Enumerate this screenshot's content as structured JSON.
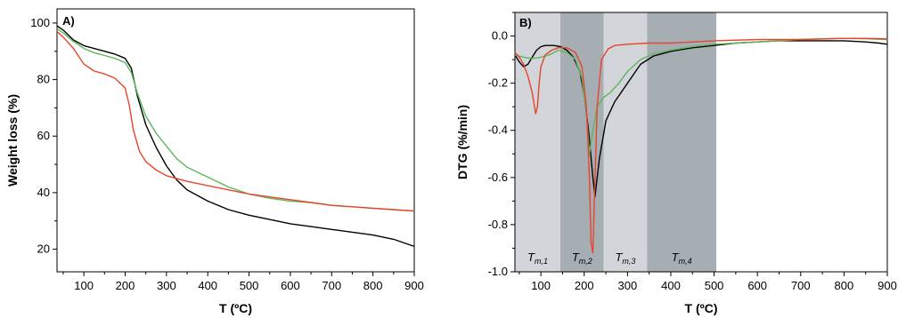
{
  "chart_data": [
    {
      "type": "line",
      "panel_label": "A)",
      "xlabel": "T (ºC)",
      "ylabel": "Weight loss (%)",
      "xlim": [
        35,
        900
      ],
      "ylim": [
        12,
        105
      ],
      "x_ticks": [
        100,
        200,
        300,
        400,
        500,
        600,
        700,
        800,
        900
      ],
      "y_ticks": [
        20,
        40,
        60,
        80,
        100
      ],
      "grid": false,
      "series": [
        {
          "color": "#000000",
          "x": [
            35,
            50,
            75,
            100,
            125,
            150,
            175,
            200,
            215,
            230,
            250,
            275,
            300,
            325,
            350,
            400,
            450,
            500,
            550,
            600,
            650,
            700,
            750,
            800,
            850,
            900
          ],
          "y": [
            99,
            97.5,
            94,
            92,
            91,
            90,
            89,
            87.5,
            84,
            74,
            64,
            56,
            49.5,
            44.5,
            41,
            37,
            34,
            32,
            30.5,
            29,
            28,
            27,
            26,
            25,
            23.5,
            21
          ]
        },
        {
          "color": "#5cb85c",
          "x": [
            35,
            50,
            75,
            100,
            125,
            150,
            175,
            200,
            215,
            230,
            250,
            275,
            300,
            325,
            350,
            400,
            450,
            500,
            550,
            600,
            650,
            700,
            750,
            800,
            850,
            900
          ],
          "y": [
            98,
            96.5,
            93.5,
            91,
            89.5,
            88.5,
            87.5,
            86,
            82.5,
            75,
            67,
            61,
            56.5,
            52,
            49,
            45.5,
            42,
            39.5,
            38,
            37,
            36.5,
            35.5,
            35,
            34.5,
            34,
            33.5
          ]
        },
        {
          "color": "#e8442c",
          "x": [
            35,
            50,
            75,
            100,
            125,
            150,
            175,
            200,
            210,
            220,
            235,
            250,
            275,
            300,
            350,
            400,
            450,
            500,
            550,
            600,
            650,
            700,
            750,
            800,
            850,
            900
          ],
          "y": [
            97,
            95,
            91,
            85.5,
            83,
            82,
            80.5,
            77,
            71,
            62,
            54.5,
            51,
            48,
            46,
            44,
            42.5,
            41,
            39.5,
            38.5,
            37.5,
            36.5,
            35.5,
            35,
            34.5,
            34,
            33.5
          ]
        }
      ]
    },
    {
      "type": "line",
      "panel_label": "B)",
      "xlabel": "T (ºC)",
      "ylabel": "DTG (%/min)",
      "xlim": [
        40,
        900
      ],
      "ylim": [
        -1.0,
        0.1
      ],
      "x_ticks": [
        100,
        200,
        300,
        400,
        500,
        600,
        700,
        800,
        900
      ],
      "y_ticks": [
        -1.0,
        -0.8,
        -0.6,
        -0.4,
        -0.2,
        0.0
      ],
      "y_tick_labels": [
        "-1.0",
        "-0.8",
        "-0.6",
        "-0.4",
        "-0.2",
        "0.0"
      ],
      "grid": false,
      "regions": [
        {
          "from": 40,
          "to": 145,
          "color": "#d2d5d9",
          "label": "T",
          "sub": "m,1"
        },
        {
          "from": 145,
          "to": 245,
          "color": "#a6aeb4",
          "label": "T",
          "sub": "m,2"
        },
        {
          "from": 245,
          "to": 345,
          "color": "#d2d5d9",
          "label": "T",
          "sub": "m,3"
        },
        {
          "from": 345,
          "to": 505,
          "color": "#a6aeb4",
          "label": "T",
          "sub": "m,4"
        }
      ],
      "series": [
        {
          "color": "#000000",
          "x": [
            40,
            50,
            60,
            70,
            80,
            90,
            100,
            110,
            120,
            130,
            145,
            160,
            175,
            190,
            200,
            210,
            220,
            225,
            235,
            250,
            270,
            300,
            330,
            360,
            400,
            450,
            500,
            550,
            600,
            650,
            700,
            750,
            800,
            850,
            880,
            900
          ],
          "y": [
            -0.08,
            -0.11,
            -0.13,
            -0.12,
            -0.09,
            -0.06,
            -0.045,
            -0.04,
            -0.04,
            -0.04,
            -0.045,
            -0.06,
            -0.09,
            -0.15,
            -0.25,
            -0.4,
            -0.6,
            -0.68,
            -0.52,
            -0.36,
            -0.28,
            -0.2,
            -0.12,
            -0.085,
            -0.065,
            -0.05,
            -0.04,
            -0.03,
            -0.025,
            -0.02,
            -0.02,
            -0.02,
            -0.02,
            -0.025,
            -0.03,
            -0.035
          ]
        },
        {
          "color": "#5cb85c",
          "x": [
            40,
            60,
            80,
            100,
            120,
            140,
            160,
            180,
            195,
            205,
            212,
            220,
            230,
            245,
            260,
            280,
            300,
            330,
            360,
            400,
            450,
            500,
            550,
            600,
            650,
            700,
            750,
            800,
            850,
            900
          ],
          "y": [
            -0.08,
            -0.09,
            -0.095,
            -0.09,
            -0.08,
            -0.06,
            -0.07,
            -0.1,
            -0.18,
            -0.32,
            -0.5,
            -0.4,
            -0.3,
            -0.26,
            -0.24,
            -0.2,
            -0.15,
            -0.1,
            -0.075,
            -0.06,
            -0.045,
            -0.035,
            -0.03,
            -0.025,
            -0.02,
            -0.015,
            -0.012,
            -0.01,
            -0.012,
            -0.015
          ]
        },
        {
          "color": "#e8442c",
          "x": [
            40,
            50,
            60,
            70,
            80,
            88,
            92,
            96,
            100,
            110,
            125,
            140,
            160,
            180,
            195,
            205,
            212,
            216,
            220,
            225,
            230,
            240,
            255,
            270,
            300,
            350,
            400,
            500,
            600,
            700,
            800,
            850,
            900
          ],
          "y": [
            -0.07,
            -0.09,
            -0.12,
            -0.17,
            -0.24,
            -0.33,
            -0.3,
            -0.2,
            -0.13,
            -0.08,
            -0.06,
            -0.05,
            -0.05,
            -0.07,
            -0.13,
            -0.3,
            -0.6,
            -0.88,
            -0.92,
            -0.6,
            -0.3,
            -0.1,
            -0.055,
            -0.04,
            -0.035,
            -0.03,
            -0.03,
            -0.02,
            -0.015,
            -0.015,
            -0.01,
            -0.01,
            -0.012
          ]
        }
      ]
    }
  ]
}
